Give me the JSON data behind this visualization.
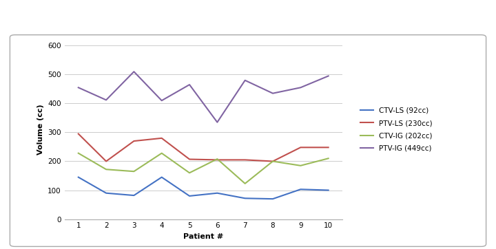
{
  "patients": [
    1,
    2,
    3,
    4,
    5,
    6,
    7,
    8,
    9,
    10
  ],
  "CTV_LS": [
    145,
    90,
    82,
    145,
    80,
    90,
    72,
    70,
    103,
    100
  ],
  "PTV_LS": [
    295,
    200,
    270,
    280,
    207,
    205,
    205,
    200,
    248,
    248
  ],
  "CTV_IG": [
    228,
    172,
    165,
    228,
    160,
    208,
    123,
    200,
    185,
    210
  ],
  "PTV_IG": [
    455,
    412,
    510,
    410,
    465,
    335,
    480,
    435,
    455,
    495
  ],
  "line_colors": {
    "CTV_LS": "#4472C4",
    "PTV_LS": "#C0504D",
    "CTV_IG": "#9BBB59",
    "PTV_IG": "#8064A2"
  },
  "legend_labels": {
    "CTV_LS": "CTV-LS (92cc)",
    "PTV_LS": "PTV-LS (230cc)",
    "CTV_IG": "CTV-IG (202cc)",
    "PTV_IG": "PTV-IG (449cc)"
  },
  "xlabel": "Patient #",
  "ylabel": "Volume (cc)",
  "ylim": [
    0,
    620
  ],
  "yticks": [
    0,
    100,
    200,
    300,
    400,
    500,
    600
  ],
  "xlim": [
    0.5,
    10.5
  ],
  "xticks": [
    1,
    2,
    3,
    4,
    5,
    6,
    7,
    8,
    9,
    10
  ],
  "background_color": "#FFFFFF",
  "outer_bg": "#F0F0F0",
  "header_color": "#D8D8D8",
  "grid_color": "#CCCCCC",
  "border_color": "#AAAAAA"
}
